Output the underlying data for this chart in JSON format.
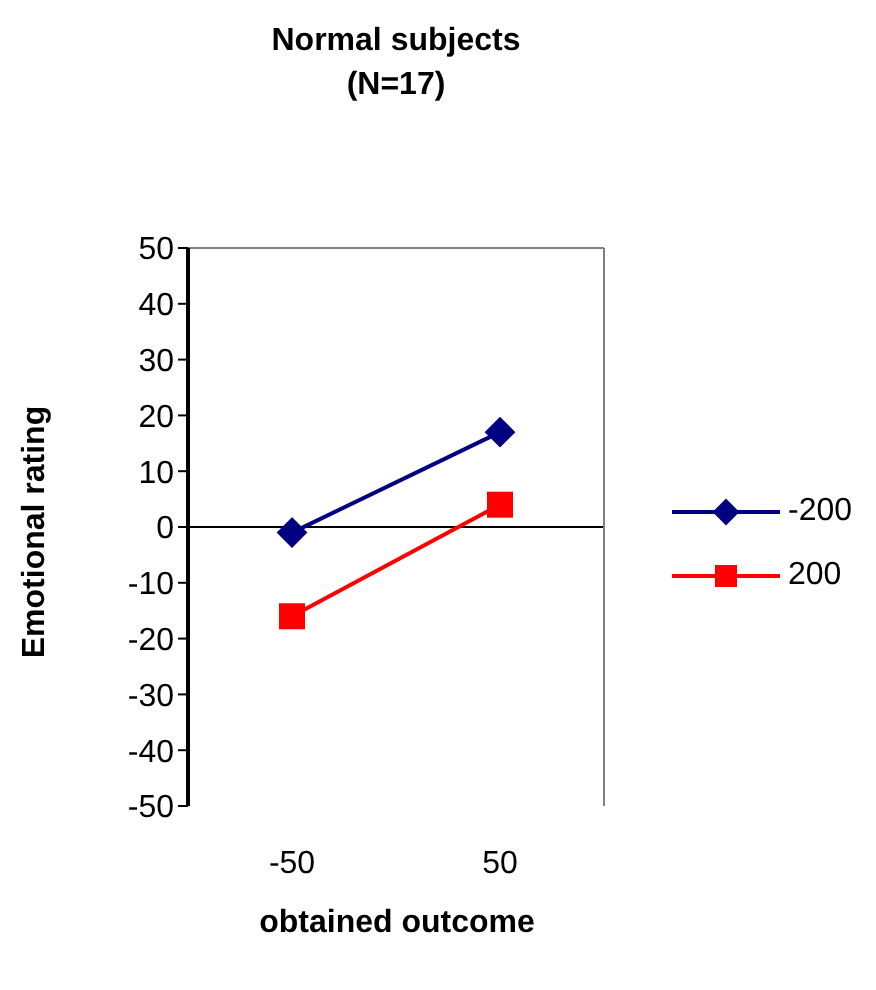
{
  "chart_data": {
    "type": "line",
    "title": "Normal subjects\n(N=17)",
    "xlabel": "obtained outcome",
    "ylabel": "Emotional rating",
    "categories": [
      "-50",
      "50"
    ],
    "series": [
      {
        "name": "-200",
        "color": "#000080",
        "values": [
          -1,
          17
        ],
        "marker": "diamond"
      },
      {
        "name": "200",
        "color": "#ff0000",
        "values": [
          -16,
          4
        ],
        "marker": "square"
      }
    ],
    "ylim": [
      -50,
      50
    ],
    "yticks": [
      -50,
      -40,
      -30,
      -20,
      -10,
      0,
      10,
      20,
      30,
      40,
      50
    ],
    "legend": "right"
  }
}
